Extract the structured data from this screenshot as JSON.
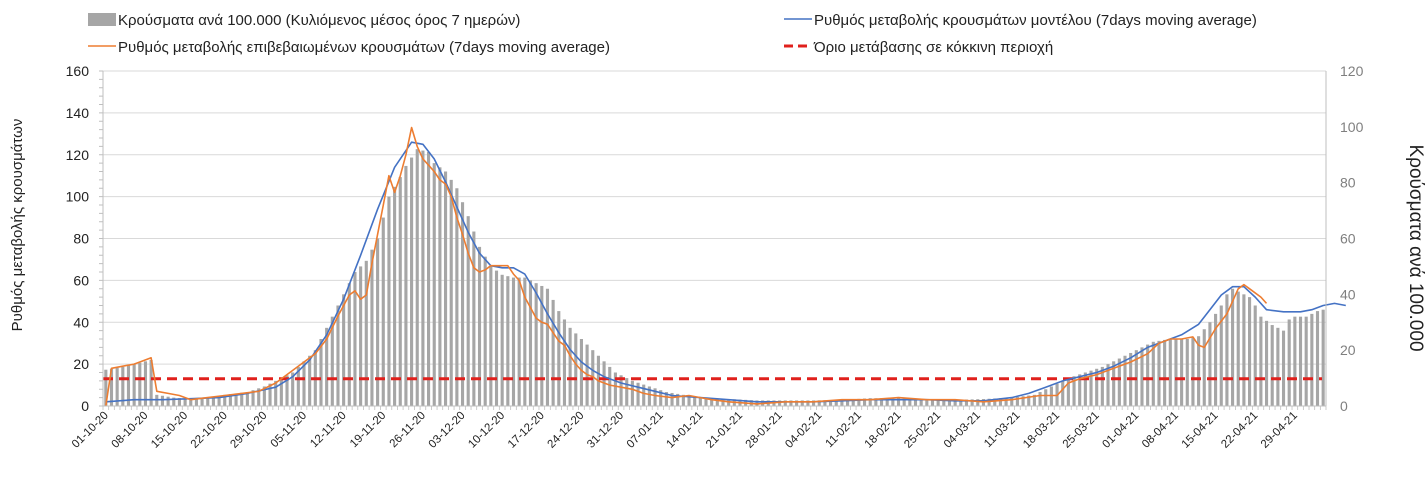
{
  "chart_data": {
    "type": "bar",
    "title": "",
    "ylabel_left": "Ρυθμός μεταβολής κρουσμάτων",
    "ylabel_right": "Κρούσματα ανά 100.000",
    "ylim_left": [
      0,
      160
    ],
    "ylim_right": [
      0,
      120
    ],
    "yticks_left": [
      "0",
      "20",
      "40",
      "60",
      "80",
      "100",
      "120",
      "140",
      "160"
    ],
    "yticks_right": [
      "0",
      "20",
      "40",
      "60",
      "80",
      "100",
      "120"
    ],
    "grid": true,
    "legend_position": "top",
    "x_tick_labels": [
      "01-10-20",
      "08-10-20",
      "15-10-20",
      "22-10-20",
      "29-10-20",
      "05-11-20",
      "12-11-20",
      "19-11-20",
      "26-11-20",
      "03-12-20",
      "10-12-20",
      "17-12-20",
      "24-12-20",
      "31-12-20",
      "07-01-21",
      "14-01-21",
      "21-01-21",
      "28-01-21",
      "04-02-21",
      "11-02-21",
      "18-02-21",
      "25-02-21",
      "04-03-21",
      "11-03-21",
      "18-03-21",
      "25-03-21",
      "01-04-21",
      "08-04-21",
      "15-04-21",
      "22-04-21",
      "29-04-21"
    ],
    "x_start": "01-10-20",
    "days": 216,
    "colors": {
      "bars": "#a6a6a6",
      "confirmed": "#ed7d31",
      "model": "#4472c4",
      "threshold": "#e0201c",
      "grid": "#d9d9d9",
      "axis": "#bfbfbf"
    },
    "series": [
      {
        "name": "Κρούσματα ανά 100.000 (Κυλιόμενος μέσος όρος 7 ημερών)",
        "kind": "bar",
        "axis": "right",
        "keyframes": [
          [
            0,
            13
          ],
          [
            3,
            14
          ],
          [
            5,
            15
          ],
          [
            7,
            16
          ],
          [
            8,
            16.5
          ],
          [
            9,
            4
          ],
          [
            12,
            3
          ],
          [
            15,
            2.5
          ],
          [
            18,
            3
          ],
          [
            21,
            4
          ],
          [
            25,
            5
          ],
          [
            28,
            7
          ],
          [
            31,
            10
          ],
          [
            33,
            12
          ],
          [
            35,
            16
          ],
          [
            37,
            20
          ],
          [
            39,
            28
          ],
          [
            42,
            40
          ],
          [
            44,
            48
          ],
          [
            46,
            52
          ],
          [
            48,
            60
          ],
          [
            50,
            75
          ],
          [
            52,
            82
          ],
          [
            53,
            86
          ],
          [
            55,
            92
          ],
          [
            57,
            91
          ],
          [
            58,
            87
          ],
          [
            60,
            84
          ],
          [
            62,
            78
          ],
          [
            64,
            68
          ],
          [
            66,
            57
          ],
          [
            68,
            50
          ],
          [
            70,
            47
          ],
          [
            72,
            46
          ],
          [
            74,
            46
          ],
          [
            76,
            44
          ],
          [
            78,
            42
          ],
          [
            80,
            34
          ],
          [
            82,
            28
          ],
          [
            84,
            24
          ],
          [
            86,
            20
          ],
          [
            88,
            16
          ],
          [
            90,
            12
          ],
          [
            93,
            9
          ],
          [
            96,
            7
          ],
          [
            99,
            5
          ],
          [
            102,
            4
          ],
          [
            105,
            3
          ],
          [
            110,
            2.5
          ],
          [
            115,
            2
          ],
          [
            120,
            2
          ],
          [
            125,
            2
          ],
          [
            130,
            2.2
          ],
          [
            135,
            2.8
          ],
          [
            140,
            2.8
          ],
          [
            145,
            2.5
          ],
          [
            150,
            2.2
          ],
          [
            155,
            2.5
          ],
          [
            160,
            3
          ],
          [
            164,
            4
          ],
          [
            167,
            7
          ],
          [
            170,
            10
          ],
          [
            173,
            12
          ],
          [
            176,
            14
          ],
          [
            179,
            17
          ],
          [
            182,
            20
          ],
          [
            185,
            23
          ],
          [
            188,
            24
          ],
          [
            191,
            24
          ],
          [
            193,
            25
          ],
          [
            195,
            30
          ],
          [
            197,
            36
          ],
          [
            198,
            40
          ],
          [
            199,
            42
          ],
          [
            200,
            41
          ],
          [
            202,
            39
          ],
          [
            203,
            36
          ],
          [
            204,
            32
          ],
          [
            206,
            29
          ],
          [
            207,
            28
          ],
          [
            208,
            27
          ],
          [
            209,
            31
          ],
          [
            210,
            32
          ],
          [
            212,
            32
          ],
          [
            214,
            34
          ],
          [
            216,
            35
          ],
          [
            219,
            35
          ]
        ]
      },
      {
        "name": "Ρυθμός μεταβολής επιβεβαιωμένων κρουσμάτων (7days moving average)",
        "kind": "line",
        "axis": "left",
        "keyframes": [
          [
            0,
            0
          ],
          [
            1,
            18
          ],
          [
            3,
            19
          ],
          [
            5,
            20
          ],
          [
            7,
            22
          ],
          [
            8,
            23
          ],
          [
            9,
            7
          ],
          [
            11,
            6
          ],
          [
            13,
            5
          ],
          [
            15,
            3
          ],
          [
            18,
            4
          ],
          [
            21,
            5
          ],
          [
            24,
            6
          ],
          [
            27,
            7
          ],
          [
            30,
            11
          ],
          [
            33,
            17
          ],
          [
            35,
            21
          ],
          [
            37,
            25
          ],
          [
            39,
            32
          ],
          [
            41,
            43
          ],
          [
            43,
            53
          ],
          [
            44,
            55
          ],
          [
            45,
            51
          ],
          [
            46,
            53
          ],
          [
            47,
            68
          ],
          [
            48,
            82
          ],
          [
            49,
            96
          ],
          [
            50,
            110
          ],
          [
            51,
            102
          ],
          [
            52,
            110
          ],
          [
            53,
            120
          ],
          [
            54,
            133
          ],
          [
            55,
            124
          ],
          [
            56,
            118
          ],
          [
            57,
            115
          ],
          [
            58,
            112
          ],
          [
            59,
            108
          ],
          [
            60,
            106
          ],
          [
            61,
            100
          ],
          [
            62,
            90
          ],
          [
            63,
            82
          ],
          [
            64,
            73
          ],
          [
            65,
            66
          ],
          [
            66,
            64
          ],
          [
            67,
            65
          ],
          [
            68,
            67
          ],
          [
            69,
            67
          ],
          [
            70,
            67
          ],
          [
            71,
            67
          ],
          [
            72,
            63
          ],
          [
            73,
            60
          ],
          [
            74,
            52
          ],
          [
            75,
            47
          ],
          [
            76,
            42
          ],
          [
            77,
            40
          ],
          [
            78,
            39
          ],
          [
            79,
            35
          ],
          [
            80,
            31
          ],
          [
            81,
            29
          ],
          [
            82,
            24
          ],
          [
            83,
            20
          ],
          [
            84,
            17
          ],
          [
            85,
            15
          ],
          [
            86,
            14
          ],
          [
            87,
            12
          ],
          [
            89,
            10
          ],
          [
            91,
            9
          ],
          [
            93,
            8
          ],
          [
            95,
            6
          ],
          [
            97,
            5
          ],
          [
            100,
            4
          ],
          [
            103,
            5
          ],
          [
            105,
            4
          ],
          [
            107,
            3
          ],
          [
            110,
            2
          ],
          [
            115,
            1
          ],
          [
            120,
            2
          ],
          [
            125,
            2
          ],
          [
            130,
            3
          ],
          [
            135,
            3
          ],
          [
            140,
            4
          ],
          [
            145,
            3
          ],
          [
            150,
            3
          ],
          [
            155,
            2
          ],
          [
            160,
            3
          ],
          [
            165,
            5
          ],
          [
            168,
            5
          ],
          [
            170,
            11
          ],
          [
            172,
            13
          ],
          [
            175,
            15
          ],
          [
            178,
            18
          ],
          [
            181,
            21
          ],
          [
            184,
            25
          ],
          [
            186,
            30
          ],
          [
            188,
            32
          ],
          [
            190,
            32
          ],
          [
            192,
            33
          ],
          [
            193,
            29
          ],
          [
            194,
            28
          ],
          [
            196,
            37
          ],
          [
            198,
            44
          ],
          [
            200,
            56
          ],
          [
            201,
            58
          ],
          [
            202,
            56
          ],
          [
            204,
            52
          ],
          [
            205,
            49
          ]
        ]
      },
      {
        "name": "Ρυθμός μεταβολής κρουσμάτων μοντέλου (7days moving average)",
        "kind": "line",
        "axis": "left",
        "keyframes": [
          [
            0,
            2
          ],
          [
            5,
            3
          ],
          [
            10,
            3
          ],
          [
            15,
            3.5
          ],
          [
            20,
            4
          ],
          [
            25,
            6
          ],
          [
            30,
            9
          ],
          [
            33,
            14
          ],
          [
            36,
            22
          ],
          [
            39,
            34
          ],
          [
            42,
            51
          ],
          [
            45,
            72
          ],
          [
            48,
            94
          ],
          [
            51,
            114
          ],
          [
            54,
            126
          ],
          [
            56,
            125
          ],
          [
            58,
            118
          ],
          [
            60,
            107
          ],
          [
            62,
            95
          ],
          [
            64,
            83
          ],
          [
            66,
            73
          ],
          [
            68,
            67
          ],
          [
            70,
            66
          ],
          [
            72,
            66
          ],
          [
            74,
            63
          ],
          [
            76,
            54
          ],
          [
            78,
            44
          ],
          [
            80,
            35
          ],
          [
            82,
            27
          ],
          [
            84,
            21
          ],
          [
            86,
            17
          ],
          [
            88,
            14
          ],
          [
            91,
            11
          ],
          [
            94,
            9
          ],
          [
            97,
            7
          ],
          [
            100,
            5
          ],
          [
            105,
            4
          ],
          [
            110,
            3
          ],
          [
            115,
            2
          ],
          [
            120,
            2
          ],
          [
            125,
            2
          ],
          [
            130,
            2.5
          ],
          [
            135,
            3
          ],
          [
            140,
            3
          ],
          [
            145,
            3
          ],
          [
            150,
            2.5
          ],
          [
            155,
            2.5
          ],
          [
            160,
            4
          ],
          [
            163,
            6
          ],
          [
            166,
            9
          ],
          [
            169,
            12
          ],
          [
            172,
            14
          ],
          [
            175,
            16
          ],
          [
            178,
            19
          ],
          [
            181,
            23
          ],
          [
            184,
            28
          ],
          [
            187,
            31
          ],
          [
            190,
            34
          ],
          [
            193,
            39
          ],
          [
            195,
            46
          ],
          [
            197,
            53
          ],
          [
            199,
            57
          ],
          [
            201,
            57
          ],
          [
            203,
            52
          ],
          [
            205,
            46
          ],
          [
            208,
            45
          ],
          [
            211,
            45
          ],
          [
            213,
            46
          ],
          [
            215,
            48
          ],
          [
            217,
            49
          ],
          [
            219,
            48
          ]
        ]
      },
      {
        "name": "Όριο μετάβασης σε κόκκινη περιοχή",
        "kind": "threshold",
        "axis": "left",
        "value": 13
      }
    ]
  }
}
